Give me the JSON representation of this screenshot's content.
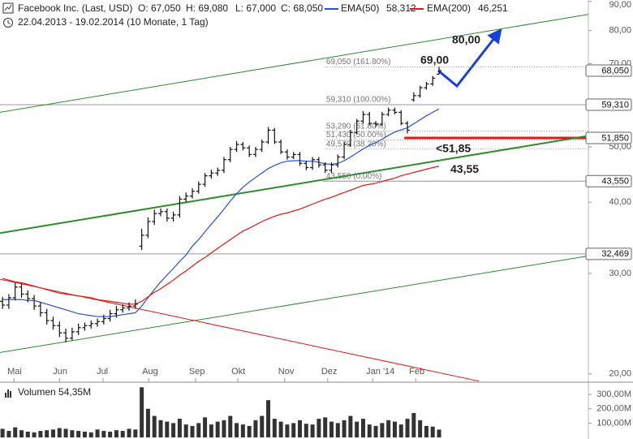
{
  "chart_data": {
    "type": "ohlc",
    "title": "Facebook Inc. (Last, USD)",
    "ohlc_labels": [
      "O: 67,050",
      "H: 69,080",
      "L: 67,000",
      "C: 68,050"
    ],
    "subtitle": "22.04.2013 - 19.02.2014 (10 Monate, 1 Tag)",
    "log_scale": true,
    "xlim": [
      -0.4,
      92.6
    ],
    "xticks": [
      {
        "value": 1.8,
        "label": "Mai"
      },
      {
        "value": 9.0,
        "label": "Jun"
      },
      {
        "value": 15.9,
        "label": "Jul"
      },
      {
        "value": 23.1,
        "label": "Aug"
      },
      {
        "value": 30.5,
        "label": "Sep"
      },
      {
        "value": 37.2,
        "label": "Okt"
      },
      {
        "value": 44.6,
        "label": "Nov"
      },
      {
        "value": 51.4,
        "label": "Dez"
      },
      {
        "value": 58.5,
        "label": "Jan '14"
      },
      {
        "value": 65.3,
        "label": "Feb"
      }
    ],
    "ylim": [
      19.4,
      90.5
    ],
    "yticks": [
      {
        "value": 90,
        "label": "90,00"
      },
      {
        "value": 80,
        "label": "80,00"
      },
      {
        "value": 70,
        "label": "70,00"
      },
      {
        "value": 50,
        "label": "50,00"
      },
      {
        "value": 40,
        "label": "40,00"
      },
      {
        "value": 30,
        "label": "30,00"
      },
      {
        "value": 20,
        "label": "20,00"
      }
    ],
    "color": "#111111",
    "open": [
      26.8,
      26.4,
      27.2,
      28.4,
      27.6,
      27.1,
      26.3,
      25.6,
      24.8,
      24.3,
      23.6,
      23.1,
      23.7,
      24.1,
      24.3,
      24.5,
      24.7,
      25.0,
      25.5,
      25.9,
      26.1,
      26.3,
      33.5,
      35.0,
      37.0,
      38.2,
      38.5,
      37.5,
      38.0,
      40.5,
      41.0,
      41.8,
      43.0,
      44.5,
      45.0,
      45.5,
      47.5,
      49.5,
      50.5,
      49.8,
      48.5,
      49.5,
      51.0,
      53.5,
      51.0,
      49.0,
      48.0,
      48.5,
      46.8,
      46.0,
      47.5,
      46.5,
      45.5,
      46.5,
      48.0,
      50.5,
      53.0,
      55.5,
      57.0,
      55.0,
      54.8,
      57.0,
      58.0,
      57.5,
      55.0,
      60.5,
      61.5,
      63.5,
      64.5,
      67.05
    ],
    "high": [
      27.3,
      27.6,
      28.9,
      28.8,
      28.0,
      27.5,
      26.7,
      26.0,
      25.2,
      24.7,
      24.0,
      24.1,
      24.5,
      24.6,
      24.8,
      25.0,
      25.4,
      25.9,
      26.3,
      26.5,
      26.7,
      27.0,
      35.9,
      37.6,
      38.8,
      39.0,
      39.0,
      38.5,
      41.0,
      41.6,
      42.3,
      43.5,
      45.0,
      45.6,
      46.0,
      48.0,
      50.0,
      51.2,
      51.0,
      50.3,
      50.0,
      51.5,
      54.2,
      54.0,
      51.5,
      49.5,
      49.0,
      49.0,
      47.3,
      48.0,
      48.0,
      47.0,
      47.0,
      48.5,
      51.0,
      53.6,
      56.0,
      57.8,
      57.6,
      55.5,
      57.6,
      58.6,
      58.6,
      58.0,
      55.5,
      62.3,
      64.0,
      65.0,
      66.6,
      69.08
    ],
    "low": [
      26.0,
      26.0,
      26.9,
      27.2,
      26.7,
      25.9,
      25.2,
      24.4,
      23.9,
      23.2,
      22.7,
      22.9,
      23.4,
      23.8,
      24.0,
      24.2,
      24.4,
      24.7,
      25.1,
      25.6,
      25.8,
      26.0,
      33.0,
      34.6,
      36.5,
      37.8,
      37.0,
      37.0,
      37.6,
      40.0,
      40.6,
      41.4,
      42.6,
      44.0,
      44.5,
      45.0,
      47.0,
      49.0,
      49.3,
      48.0,
      48.0,
      49.0,
      50.6,
      50.6,
      48.6,
      47.5,
      47.6,
      46.3,
      45.5,
      45.6,
      46.0,
      45.0,
      45.0,
      46.0,
      47.6,
      50.0,
      52.6,
      55.0,
      54.6,
      54.2,
      54.5,
      56.6,
      57.0,
      54.6,
      52.8,
      60.0,
      61.0,
      63.0,
      64.0,
      67.0
    ],
    "close": [
      26.4,
      27.2,
      28.4,
      27.6,
      27.1,
      26.3,
      25.6,
      24.8,
      24.3,
      23.6,
      23.1,
      23.7,
      24.1,
      24.3,
      24.5,
      24.7,
      25.0,
      25.5,
      25.9,
      26.1,
      26.3,
      26.5,
      35.0,
      37.0,
      38.2,
      38.5,
      37.5,
      38.0,
      40.5,
      41.0,
      41.8,
      43.0,
      44.5,
      45.0,
      45.5,
      47.5,
      49.5,
      50.5,
      49.8,
      48.5,
      49.5,
      51.0,
      53.5,
      51.0,
      49.0,
      48.0,
      48.5,
      46.8,
      46.0,
      47.5,
      46.5,
      45.5,
      46.5,
      48.0,
      50.5,
      53.0,
      55.5,
      57.0,
      55.0,
      54.8,
      57.0,
      58.0,
      57.5,
      55.0,
      53.5,
      61.5,
      63.5,
      64.5,
      66.0,
      68.05
    ],
    "series": [
      {
        "name": "EMA(50)",
        "value_label": "58,312",
        "color": "#2a4fd8",
        "values": [
          27.0,
          27.0,
          27.0,
          27.0,
          26.9,
          26.9,
          26.7,
          26.5,
          26.3,
          26.1,
          25.9,
          25.7,
          25.5,
          25.4,
          25.3,
          25.2,
          25.2,
          25.2,
          25.3,
          25.4,
          25.5,
          25.6,
          26.3,
          27.2,
          28.1,
          29.0,
          29.8,
          30.6,
          31.5,
          32.3,
          33.5,
          34.4,
          35.5,
          36.6,
          37.7,
          38.9,
          40.2,
          41.4,
          42.5,
          43.4,
          44.2,
          45.0,
          45.8,
          46.4,
          46.9,
          47.2,
          47.3,
          47.3,
          47.2,
          47.2,
          47.0,
          46.7,
          46.6,
          46.8,
          47.3,
          48.0,
          48.8,
          49.6,
          50.3,
          50.9,
          51.6,
          52.4,
          53.1,
          53.6,
          54.0,
          54.9,
          55.8,
          56.7,
          57.5,
          58.312
        ]
      },
      {
        "name": "EMA(200)",
        "value_label": "46,251",
        "color": "#e01818",
        "values": [
          29.4,
          29.2,
          29.0,
          28.9,
          28.7,
          28.5,
          28.3,
          28.1,
          27.9,
          27.7,
          27.6,
          27.5,
          27.4,
          27.3,
          27.2,
          27.0,
          26.9,
          26.8,
          26.7,
          26.6,
          26.5,
          26.5,
          26.8,
          27.3,
          27.8,
          28.2,
          28.7,
          29.2,
          29.8,
          30.3,
          30.9,
          31.5,
          32.0,
          32.6,
          33.2,
          33.8,
          34.4,
          35.0,
          35.6,
          36.0,
          36.5,
          37.0,
          37.4,
          37.8,
          38.1,
          38.3,
          38.6,
          38.9,
          39.3,
          39.7,
          40.1,
          40.5,
          40.8,
          41.2,
          41.6,
          42.0,
          42.4,
          42.8,
          43.0,
          43.2,
          43.5,
          43.8,
          44.1,
          44.5,
          44.8,
          45.1,
          45.4,
          45.7,
          46.0,
          46.251
        ]
      }
    ],
    "trend_lines": [
      {
        "from": [
          -0.4,
          57.5
        ],
        "to": [
          92.6,
          85.4
        ],
        "color": "#2e8b2e",
        "width": 1
      },
      {
        "from": [
          -0.4,
          35.3
        ],
        "to": [
          92.6,
          52.3
        ],
        "color": "#2e8b2e",
        "width": 2
      },
      {
        "from": [
          -0.4,
          21.8
        ],
        "to": [
          92.6,
          32.2
        ],
        "color": "#2e8b2e",
        "width": 1
      },
      {
        "from": [
          -0.4,
          29.3
        ],
        "to": [
          75.3,
          19.42
        ],
        "color": "#e01818",
        "width": 1
      }
    ],
    "levels": [
      {
        "value": 59.31,
        "from": -0.4,
        "color": "#999999",
        "width": 1
      },
      {
        "value": 43.55,
        "from": 50.6,
        "color": "#999999",
        "width": 1
      },
      {
        "value": 32.469,
        "from": -0.4,
        "color": "#999999",
        "width": 1
      },
      {
        "value": 51.85,
        "from": 63.5,
        "color": "#e01818",
        "width": 3
      }
    ],
    "fibonacci": [
      {
        "value": 69.05,
        "label": "69,050 (161.80%)"
      },
      {
        "value": 59.31,
        "label": "59,310 (100.00%)"
      },
      {
        "value": 53.29,
        "label": "53,290 (61.80%)"
      },
      {
        "value": 51.43,
        "label": "51,430 (50.00%)"
      },
      {
        "value": 49.57,
        "label": "49,570 (38.20%)"
      },
      {
        "value": 43.55,
        "label": "43,550 (0.00%)"
      }
    ],
    "price_tags": [
      {
        "value": 68.05,
        "label": "68,050"
      },
      {
        "value": 59.31,
        "label": "59,310"
      },
      {
        "value": 51.85,
        "label": "51,850"
      },
      {
        "value": 43.55,
        "label": "43,550"
      },
      {
        "value": 32.469,
        "label": "32,469"
      }
    ],
    "annotations": [
      {
        "text": "80,00",
        "value": 80,
        "color": "#1a3fd6"
      },
      {
        "text": "69,00",
        "value": 69,
        "color": "#1a3fd6"
      },
      {
        "text": "<51,85",
        "value": 51.85,
        "color": "#e01818"
      },
      {
        "text": "43,55",
        "value": 43.55,
        "color": "#888888"
      }
    ],
    "volume": {
      "label": "Volumen 54,35M",
      "color": "#333333",
      "ylim": [
        0,
        363
      ],
      "yticks": [
        {
          "value": 300,
          "label": "300,00M"
        },
        {
          "value": 200,
          "label": "200,00M"
        },
        {
          "value": 100,
          "label": "100,00M"
        }
      ],
      "values": [
        60,
        45,
        70,
        50,
        40,
        35,
        45,
        50,
        55,
        65,
        60,
        50,
        45,
        40,
        35,
        55,
        45,
        40,
        50,
        45,
        60,
        55,
        350,
        200,
        150,
        120,
        110,
        100,
        130,
        90,
        80,
        100,
        140,
        90,
        110,
        120,
        150,
        100,
        90,
        80,
        120,
        150,
        260,
        130,
        110,
        90,
        100,
        120,
        95,
        90,
        130,
        140,
        110,
        100,
        120,
        150,
        110,
        130,
        90,
        80,
        100,
        120,
        110,
        90,
        130,
        170,
        120,
        80,
        75,
        54.35
      ]
    }
  }
}
